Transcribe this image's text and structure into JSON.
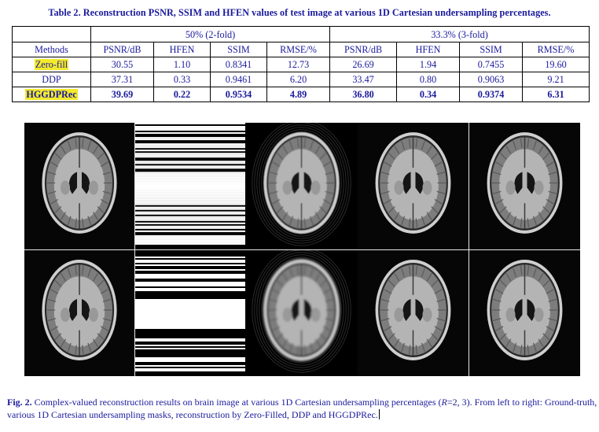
{
  "table": {
    "title": "Table 2. Reconstruction PSNR, SSIM and HFEN values of test image at various 1D Cartesian undersampling percentages.",
    "groups": [
      "50% (2-fold)",
      "33.3% (3-fold)"
    ],
    "columns": [
      "Methods",
      "PSNR/dB",
      "HFEN",
      "SSIM",
      "RMSE/%",
      "PSNR/dB",
      "HFEN",
      "SSIM",
      "RMSE/%"
    ],
    "rows": [
      {
        "method": "Zero-fill",
        "highlight": true,
        "bold": false,
        "values": [
          "30.55",
          "1.10",
          "0.8341",
          "12.73",
          "26.69",
          "1.94",
          "0.7455",
          "19.60"
        ]
      },
      {
        "method": "DDP",
        "highlight": false,
        "bold": false,
        "values": [
          "37.31",
          "0.33",
          "0.9461",
          "6.20",
          "33.47",
          "0.80",
          "0.9063",
          "9.21"
        ]
      },
      {
        "method": "HGGDPRec",
        "highlight": true,
        "bold": true,
        "values": [
          "39.69",
          "0.22",
          "0.9534",
          "4.89",
          "36.80",
          "0.34",
          "0.9374",
          "6.31"
        ]
      }
    ]
  },
  "figure": {
    "panels": [
      "ground-truth",
      "undersampling-mask",
      "zero-filled",
      "ddp",
      "hggdprec"
    ],
    "rows": 2
  },
  "caption": {
    "label": "Fig. 2.",
    "text_a": " Complex-valued reconstruction results on brain image at various 1D Cartesian undersampling percentages (",
    "r_var": "R",
    "text_b": "=2, 3). From left to right: Ground-truth, various 1D Cartesian undersampling masks, reconstruction by Zero-Filled, DDP and HGGDPRec."
  },
  "colors": {
    "text": "#1a1a9c",
    "highlight": "#f3ea2b"
  }
}
